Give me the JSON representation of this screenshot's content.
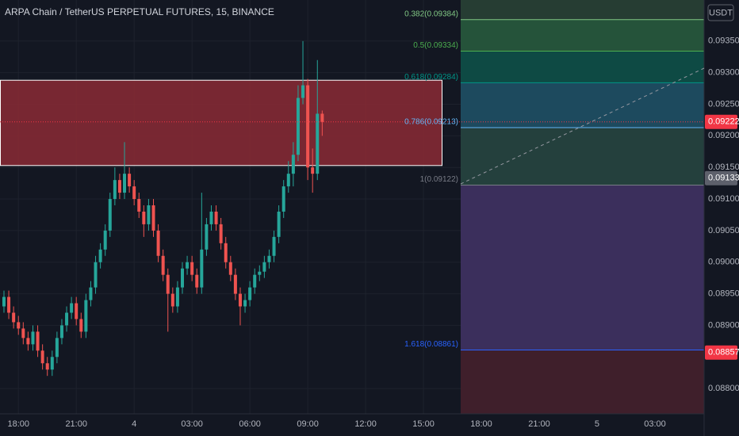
{
  "chart_data": {
    "type": "candlestick",
    "title": "ARPA Chain / TetherUS PERPETUAL FUTURES, 15, BINANCE",
    "currency": "USDT",
    "up_color": "#26a69a",
    "down_color": "#ef5350",
    "open": [
      0.0893,
      0.08945,
      0.0892,
      0.08905,
      0.08895,
      0.0888,
      0.0887,
      0.0889,
      0.0886,
      0.0884,
      0.0883,
      0.0885,
      0.0888,
      0.089,
      0.0892,
      0.08935,
      0.0891,
      0.0889,
      0.0894,
      0.0896,
      0.09,
      0.0902,
      0.0905,
      0.091,
      0.0913,
      0.0911,
      0.0914,
      0.0912,
      0.091,
      0.0908,
      0.0906,
      0.0909,
      0.0905,
      0.0901,
      0.0898,
      0.0895,
      0.0893,
      0.0896,
      0.0899,
      0.09,
      0.0898,
      0.0896,
      0.0902,
      0.0906,
      0.0908,
      0.0906,
      0.0903,
      0.09,
      0.0898,
      0.0895,
      0.0893,
      0.0894,
      0.0896,
      0.0898,
      0.08985,
      0.09,
      0.0901,
      0.0904,
      0.0908,
      0.0912,
      0.0914,
      0.0917,
      0.0926,
      0.0928,
      0.0915,
      0.0914,
      0.09235
    ],
    "high": [
      0.08955,
      0.08955,
      0.0893,
      0.08915,
      0.08905,
      0.0889,
      0.089,
      0.089,
      0.0887,
      0.0885,
      0.0886,
      0.0889,
      0.0891,
      0.0893,
      0.08945,
      0.08945,
      0.0892,
      0.0895,
      0.0897,
      0.0901,
      0.0903,
      0.0906,
      0.0911,
      0.0915,
      0.0914,
      0.0919,
      0.0915,
      0.0913,
      0.0911,
      0.0909,
      0.091,
      0.091,
      0.0906,
      0.0902,
      0.0899,
      0.0896,
      0.0897,
      0.09,
      0.0901,
      0.0901,
      0.0899,
      0.0911,
      0.0907,
      0.0909,
      0.0909,
      0.0907,
      0.0904,
      0.0901,
      0.0899,
      0.0896,
      0.0895,
      0.0897,
      0.0899,
      0.08995,
      0.0901,
      0.0902,
      0.0905,
      0.0909,
      0.0913,
      0.0916,
      0.0919,
      0.0928,
      0.0935,
      0.0929,
      0.0918,
      0.0932,
      0.0924
    ],
    "low": [
      0.0892,
      0.0891,
      0.08895,
      0.08885,
      0.0887,
      0.0886,
      0.0886,
      0.0885,
      0.0883,
      0.0882,
      0.0882,
      0.0884,
      0.0887,
      0.0889,
      0.0891,
      0.089,
      0.0888,
      0.0888,
      0.0893,
      0.0895,
      0.0899,
      0.0901,
      0.0904,
      0.0909,
      0.091,
      0.091,
      0.0911,
      0.0909,
      0.0907,
      0.0904,
      0.0905,
      0.0904,
      0.09,
      0.0897,
      0.0889,
      0.0892,
      0.0892,
      0.0895,
      0.0898,
      0.0897,
      0.0895,
      0.0895,
      0.0901,
      0.0905,
      0.0905,
      0.0902,
      0.0899,
      0.0897,
      0.0894,
      0.089,
      0.0892,
      0.0893,
      0.0895,
      0.0897,
      0.08975,
      0.0899,
      0.09,
      0.0903,
      0.0907,
      0.0911,
      0.0912,
      0.0916,
      0.0925,
      0.0913,
      0.0911,
      0.0913,
      0.092
    ],
    "close": [
      0.08945,
      0.0892,
      0.08905,
      0.08895,
      0.0888,
      0.0887,
      0.0889,
      0.0886,
      0.0884,
      0.0883,
      0.0885,
      0.0888,
      0.089,
      0.0892,
      0.08935,
      0.0891,
      0.0889,
      0.0894,
      0.0896,
      0.09,
      0.0902,
      0.0905,
      0.091,
      0.0913,
      0.0911,
      0.0914,
      0.0912,
      0.091,
      0.0908,
      0.0906,
      0.0909,
      0.0905,
      0.0901,
      0.0898,
      0.0895,
      0.0893,
      0.0896,
      0.0899,
      0.09,
      0.0898,
      0.0896,
      0.0902,
      0.0906,
      0.0908,
      0.0906,
      0.0903,
      0.09,
      0.0898,
      0.0895,
      0.0893,
      0.0894,
      0.0896,
      0.0898,
      0.08985,
      0.09,
      0.0901,
      0.0904,
      0.0908,
      0.0912,
      0.0914,
      0.0917,
      0.0926,
      0.0928,
      0.0915,
      0.0914,
      0.09235,
      0.09222
    ],
    "xlim": [
      -0.82,
      145.2
    ],
    "xticks": [
      {
        "value": 3,
        "label": "18:00"
      },
      {
        "value": 15,
        "label": "21:00"
      },
      {
        "value": 27,
        "label": "4"
      },
      {
        "value": 39,
        "label": "03:00"
      },
      {
        "value": 51,
        "label": "06:00"
      },
      {
        "value": 63,
        "label": "09:00"
      },
      {
        "value": 75,
        "label": "12:00"
      },
      {
        "value": 87,
        "label": "15:00"
      },
      {
        "value": 99,
        "label": "18:00"
      },
      {
        "value": 111,
        "label": "21:00"
      },
      {
        "value": 123,
        "label": "5"
      },
      {
        "value": 135,
        "label": "03:00"
      }
    ],
    "ylim": [
      0.0876,
      0.09415
    ],
    "yticks": [
      {
        "value": 0.0935,
        "label": "0.09350"
      },
      {
        "value": 0.093,
        "label": "0.09300"
      },
      {
        "value": 0.0925,
        "label": "0.09250"
      },
      {
        "value": 0.092,
        "label": "0.09200"
      },
      {
        "value": 0.0915,
        "label": "0.09150"
      },
      {
        "value": 0.091,
        "label": "0.09100"
      },
      {
        "value": 0.0905,
        "label": "0.09050"
      },
      {
        "value": 0.09,
        "label": "0.09000"
      },
      {
        "value": 0.0895,
        "label": "0.08950"
      },
      {
        "value": 0.089,
        "label": "0.08900"
      },
      {
        "value": 0.088,
        "label": "0.08800"
      }
    ],
    "grid": true,
    "zone": {
      "top": 0.09288,
      "bottom": 0.09153,
      "color": "#8b2a35"
    },
    "fib_fill_above": "#263d33",
    "fib_levels": [
      {
        "label": "0.382(0.09384)",
        "value": 0.09384,
        "color": "#81c784",
        "fill": "#25533a"
      },
      {
        "label": "0.5(0.09334)",
        "value": 0.09334,
        "color": "#4caf50",
        "fill": "#0e4a44"
      },
      {
        "label": "0.618(0.09284)",
        "value": 0.09284,
        "color": "#009688",
        "fill": "#1d4a5e"
      },
      {
        "label": "0.786(0.09213)",
        "value": 0.09213,
        "color": "#64b5f6",
        "fill": "#24403d"
      },
      {
        "label": "1(0.09122)",
        "value": 0.09122,
        "color": "#787b86",
        "fill": "#3b2f5c"
      },
      {
        "label": "1.618(0.08861)",
        "value": 0.08861,
        "color": "#2962ff",
        "fill": "#3f1f2b"
      }
    ],
    "price_badges": [
      {
        "value": 0.09222,
        "label": "0.09222",
        "color": "#f23645",
        "line": true
      },
      {
        "value": 0.09133,
        "label": "0.09133",
        "color": "#5d606b",
        "line": false
      },
      {
        "value": 0.08857,
        "label": "0.08857",
        "color": "#f23645",
        "line": false
      }
    ]
  }
}
